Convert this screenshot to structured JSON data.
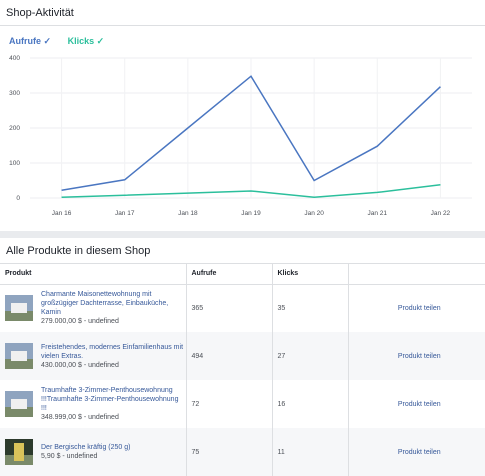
{
  "activity": {
    "title": "Shop-Aktivität",
    "legend_views": "Aufrufe",
    "legend_clicks": "Klicks",
    "check": "✓"
  },
  "colors": {
    "views": "#4a76c1",
    "clicks": "#2bbf9c"
  },
  "chart_data": {
    "type": "line",
    "categories": [
      "Jan 16",
      "Jan 17",
      "Jan 18",
      "Jan 19",
      "Jan 20",
      "Jan 21",
      "Jan 22"
    ],
    "series": [
      {
        "name": "Aufrufe",
        "values": [
          22,
          52,
          200,
          348,
          50,
          148,
          318
        ]
      },
      {
        "name": "Klicks",
        "values": [
          2,
          8,
          14,
          20,
          2,
          16,
          38
        ]
      }
    ],
    "yticks": [
      0,
      100,
      200,
      300,
      400
    ],
    "ylim": [
      0,
      400
    ]
  },
  "products": {
    "title": "Alle Produkte in diesem Shop",
    "columns": [
      "Produkt",
      "Aufrufe",
      "Klicks",
      ""
    ],
    "rows": [
      {
        "name": "Charmante Maisonettewohnung mit großzügiger Dachterrasse, Einbauküche, Kamin",
        "price": "279.000,00 $ - undefined",
        "views": "365",
        "clicks": "35",
        "action": "Produkt teilen"
      },
      {
        "name": "Freistehendes, modernes Einfamilienhaus mit vielen Extras.",
        "price": "430.000,00 $ - undefined",
        "views": "494",
        "clicks": "27",
        "action": "Produkt teilen"
      },
      {
        "name": "Traumhafte 3-Zimmer-Penthousewohnung !!!Traumhafte 3-Zimmer-Penthousewohnung !!!",
        "price": "348.999,00 $ - undefined",
        "views": "72",
        "clicks": "16",
        "action": "Produkt teilen"
      },
      {
        "name": "Der Bergische kräftig (250 g)",
        "price": "5,90 $ - undefined",
        "views": "75",
        "clicks": "11",
        "action": "Produkt teilen"
      }
    ]
  }
}
